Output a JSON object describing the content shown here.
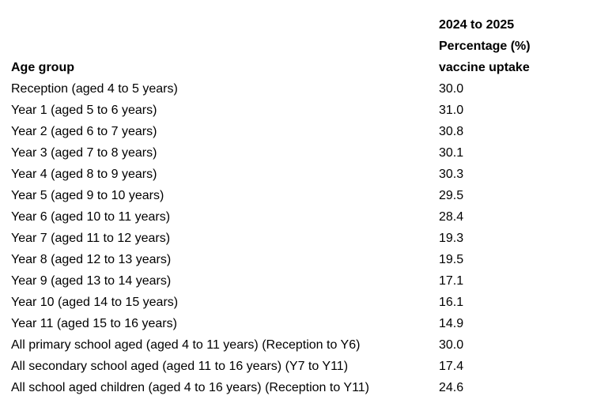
{
  "table": {
    "col1_header": "Age group",
    "col2_header_lines": [
      "2024 to 2025",
      "Percentage (%)",
      "vaccine uptake"
    ],
    "rows": [
      {
        "label": "Reception (aged 4 to 5 years)",
        "value": "30.0"
      },
      {
        "label": "Year 1 (aged 5 to 6 years)",
        "value": "31.0"
      },
      {
        "label": "Year 2 (aged 6 to 7 years)",
        "value": "30.8"
      },
      {
        "label": "Year 3 (aged 7 to 8 years)",
        "value": "30.1"
      },
      {
        "label": "Year 4 (aged 8 to 9 years)",
        "value": "30.3"
      },
      {
        "label": "Year 5 (aged 9 to 10 years)",
        "value": "29.5"
      },
      {
        "label": "Year 6 (aged 10 to 11 years)",
        "value": "28.4"
      },
      {
        "label": "Year 7 (aged 11 to 12 years)",
        "value": "19.3"
      },
      {
        "label": "Year 8 (aged 12 to 13 years)",
        "value": "19.5"
      },
      {
        "label": "Year 9 (aged 13 to 14 years)",
        "value": "17.1"
      },
      {
        "label": "Year 10 (aged 14 to 15 years)",
        "value": "16.1"
      },
      {
        "label": "Year 11 (aged 15 to 16 years)",
        "value": "14.9"
      },
      {
        "label": "All primary school aged (aged 4 to 11 years) (Reception to Y6)",
        "value": "30.0"
      },
      {
        "label": "All secondary school aged (aged 11 to 16 years) (Y7 to Y11)",
        "value": "17.4"
      },
      {
        "label": "All school aged children (aged 4 to 16 years) (Reception to Y11)",
        "value": "24.6"
      }
    ]
  },
  "chart_data": {
    "type": "table",
    "title": "2024 to 2025 Percentage (%) vaccine uptake by age group",
    "columns": [
      "Age group",
      "2024 to 2025 Percentage (%) vaccine uptake"
    ],
    "categories": [
      "Reception (aged 4 to 5 years)",
      "Year 1 (aged 5 to 6 years)",
      "Year 2 (aged 6 to 7 years)",
      "Year 3 (aged 7 to 8 years)",
      "Year 4 (aged 8 to 9 years)",
      "Year 5 (aged 9 to 10 years)",
      "Year 6 (aged 10 to 11 years)",
      "Year 7 (aged 11 to 12 years)",
      "Year 8 (aged 12 to 13 years)",
      "Year 9 (aged 13 to 14 years)",
      "Year 10 (aged 14 to 15 years)",
      "Year 11 (aged 15 to 16 years)",
      "All primary school aged (aged 4 to 11 years) (Reception to Y6)",
      "All secondary school aged (aged 11 to 16 years) (Y7 to Y11)",
      "All school aged children (aged 4 to 16 years) (Reception to Y11)"
    ],
    "values": [
      30.0,
      31.0,
      30.8,
      30.1,
      30.3,
      29.5,
      28.4,
      19.3,
      19.5,
      17.1,
      16.1,
      14.9,
      30.0,
      17.4,
      24.6
    ]
  }
}
